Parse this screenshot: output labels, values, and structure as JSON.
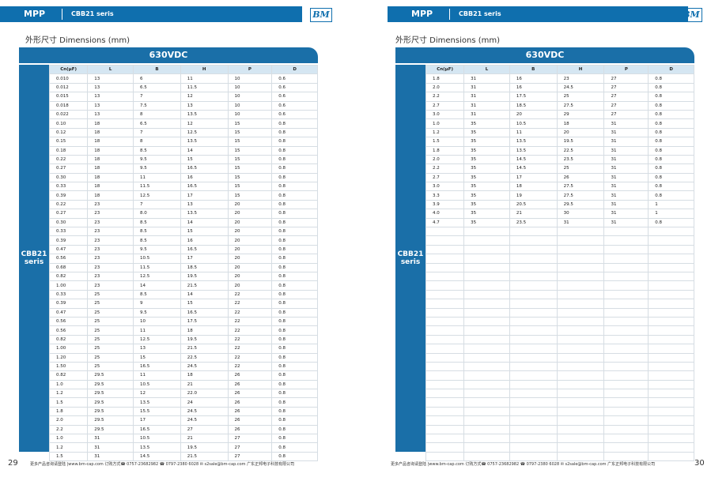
{
  "pages": [
    {
      "header": {
        "series": "MPP",
        "model": "CBB21 seris",
        "logo": "BM"
      },
      "heading": "外形尺寸 Dimensions (mm)",
      "table": {
        "title": "630VDC",
        "side_label": "CBB21 seris",
        "columns": [
          "Cn(μF)",
          "L",
          "B",
          "H",
          "P",
          "D"
        ],
        "rows": [
          [
            "0.010",
            "13",
            "6",
            "11",
            "10",
            "0.6"
          ],
          [
            "0.012",
            "13",
            "6.5",
            "11.5",
            "10",
            "0.6"
          ],
          [
            "0.015",
            "13",
            "7",
            "12",
            "10",
            "0.6"
          ],
          [
            "0.018",
            "13",
            "7.5",
            "13",
            "10",
            "0.6"
          ],
          [
            "0.022",
            "13",
            "8",
            "13.5",
            "10",
            "0.6"
          ],
          [
            "0.10",
            "18",
            "6.5",
            "12",
            "15",
            "0.8"
          ],
          [
            "0.12",
            "18",
            "7",
            "12.5",
            "15",
            "0.8"
          ],
          [
            "0.15",
            "18",
            "8",
            "13.5",
            "15",
            "0.8"
          ],
          [
            "0.18",
            "18",
            "8.5",
            "14",
            "15",
            "0.8"
          ],
          [
            "0.22",
            "18",
            "9.5",
            "15",
            "15",
            "0.8"
          ],
          [
            "0.27",
            "18",
            "9.5",
            "16.5",
            "15",
            "0.8"
          ],
          [
            "0.30",
            "18",
            "11",
            "16",
            "15",
            "0.8"
          ],
          [
            "0.33",
            "18",
            "11.5",
            "16.5",
            "15",
            "0.8"
          ],
          [
            "0.39",
            "18",
            "12.5",
            "17",
            "15",
            "0.8"
          ],
          [
            "0.22",
            "23",
            "7",
            "13",
            "20",
            "0.8"
          ],
          [
            "0.27",
            "23",
            "8.0",
            "13.5",
            "20",
            "0.8"
          ],
          [
            "0.30",
            "23",
            "8.5",
            "14",
            "20",
            "0.8"
          ],
          [
            "0.33",
            "23",
            "8.5",
            "15",
            "20",
            "0.8"
          ],
          [
            "0.39",
            "23",
            "8.5",
            "16",
            "20",
            "0.8"
          ],
          [
            "0.47",
            "23",
            "9.5",
            "16.5",
            "20",
            "0.8"
          ],
          [
            "0.56",
            "23",
            "10.5",
            "17",
            "20",
            "0.8"
          ],
          [
            "0.68",
            "23",
            "11.5",
            "18.5",
            "20",
            "0.8"
          ],
          [
            "0.82",
            "23",
            "12.5",
            "19.5",
            "20",
            "0.8"
          ],
          [
            "1.00",
            "23",
            "14",
            "21.5",
            "20",
            "0.8"
          ],
          [
            "0.33",
            "25",
            "8.5",
            "14",
            "22",
            "0.8"
          ],
          [
            "0.39",
            "25",
            "9",
            "15",
            "22",
            "0.8"
          ],
          [
            "0.47",
            "25",
            "9.5",
            "16.5",
            "22",
            "0.8"
          ],
          [
            "0.56",
            "25",
            "10",
            "17.5",
            "22",
            "0.8"
          ],
          [
            "0.56",
            "25",
            "11",
            "18",
            "22",
            "0.8"
          ],
          [
            "0.82",
            "25",
            "12.5",
            "19.5",
            "22",
            "0.8"
          ],
          [
            "1.00",
            "25",
            "13",
            "21.5",
            "22",
            "0.8"
          ],
          [
            "1.20",
            "25",
            "15",
            "22.5",
            "22",
            "0.8"
          ],
          [
            "1.50",
            "25",
            "16.5",
            "24.5",
            "22",
            "0.8"
          ],
          [
            "0.82",
            "29.5",
            "11",
            "18",
            "26",
            "0.8"
          ],
          [
            "1.0",
            "29.5",
            "10.5",
            "21",
            "26",
            "0.8"
          ],
          [
            "1.2",
            "29.5",
            "12",
            "22.0",
            "26",
            "0.8"
          ],
          [
            "1.5",
            "29.5",
            "13.5",
            "24",
            "26",
            "0.8"
          ],
          [
            "1.8",
            "29.5",
            "15.5",
            "24.5",
            "26",
            "0.8"
          ],
          [
            "2.0",
            "29.5",
            "17",
            "24.5",
            "26",
            "0.8"
          ],
          [
            "2.2",
            "29.5",
            "16.5",
            "27",
            "26",
            "0.8"
          ],
          [
            "1.0",
            "31",
            "10.5",
            "21",
            "27",
            "0.8"
          ],
          [
            "1.2",
            "31",
            "13.5",
            "19.5",
            "27",
            "0.8"
          ],
          [
            "1.5",
            "31",
            "14.5",
            "21.5",
            "27",
            "0.8"
          ]
        ]
      },
      "footer": "更多产品咨询请登陆 |www.bm-cap.com  订购方式☎ 0757-23682982   ☎ 0797-2380 6028   ✉ s2sale@bm-cap.com   广东正邦电子科技有限公司",
      "page_number": "29"
    },
    {
      "header": {
        "series": "MPP",
        "model": "CBB21 seris",
        "logo": "BM"
      },
      "heading": "外形尺寸 Dimensions (mm)",
      "table": {
        "title": "630VDC",
        "side_label": "CBB21 seris",
        "columns": [
          "Cn(μF)",
          "L",
          "B",
          "H",
          "P",
          "D"
        ],
        "rows": [
          [
            "1.8",
            "31",
            "16",
            "23",
            "27",
            "0.8"
          ],
          [
            "2.0",
            "31",
            "16",
            "24.5",
            "27",
            "0.8"
          ],
          [
            "2.2",
            "31",
            "17.5",
            "25",
            "27",
            "0.8"
          ],
          [
            "2.7",
            "31",
            "18.5",
            "27.5",
            "27",
            "0.8"
          ],
          [
            "3.0",
            "31",
            "20",
            "29",
            "27",
            "0.8"
          ],
          [
            "1.0",
            "35",
            "10.5",
            "18",
            "31",
            "0.8"
          ],
          [
            "1.2",
            "35",
            "11",
            "20",
            "31",
            "0.8"
          ],
          [
            "1.5",
            "35",
            "13.5",
            "19.5",
            "31",
            "0.8"
          ],
          [
            "1.8",
            "35",
            "13.5",
            "22.5",
            "31",
            "0.8"
          ],
          [
            "2.0",
            "35",
            "14.5",
            "23.5",
            "31",
            "0.8"
          ],
          [
            "2.2",
            "35",
            "14.5",
            "25",
            "31",
            "0.8"
          ],
          [
            "2.7",
            "35",
            "17",
            "26",
            "31",
            "0.8"
          ],
          [
            "3.0",
            "35",
            "18",
            "27.5",
            "31",
            "0.8"
          ],
          [
            "3.3",
            "35",
            "19",
            "27.5",
            "31",
            "0.8"
          ],
          [
            "3.9",
            "35",
            "20.5",
            "29.5",
            "31",
            "1"
          ],
          [
            "4.0",
            "35",
            "21",
            "30",
            "31",
            "1"
          ],
          [
            "4.7",
            "35",
            "23.5",
            "31",
            "31",
            "0.8"
          ]
        ]
      },
      "footer": "更多产品咨询请登陆 |www.bm-cap.com  订购方式☎ 0757-23682982   ☎ 0797-2380 6028   ✉ s2sale@bm-cap.com   广东正邦电子科技有限公司",
      "page_number": "30"
    }
  ]
}
